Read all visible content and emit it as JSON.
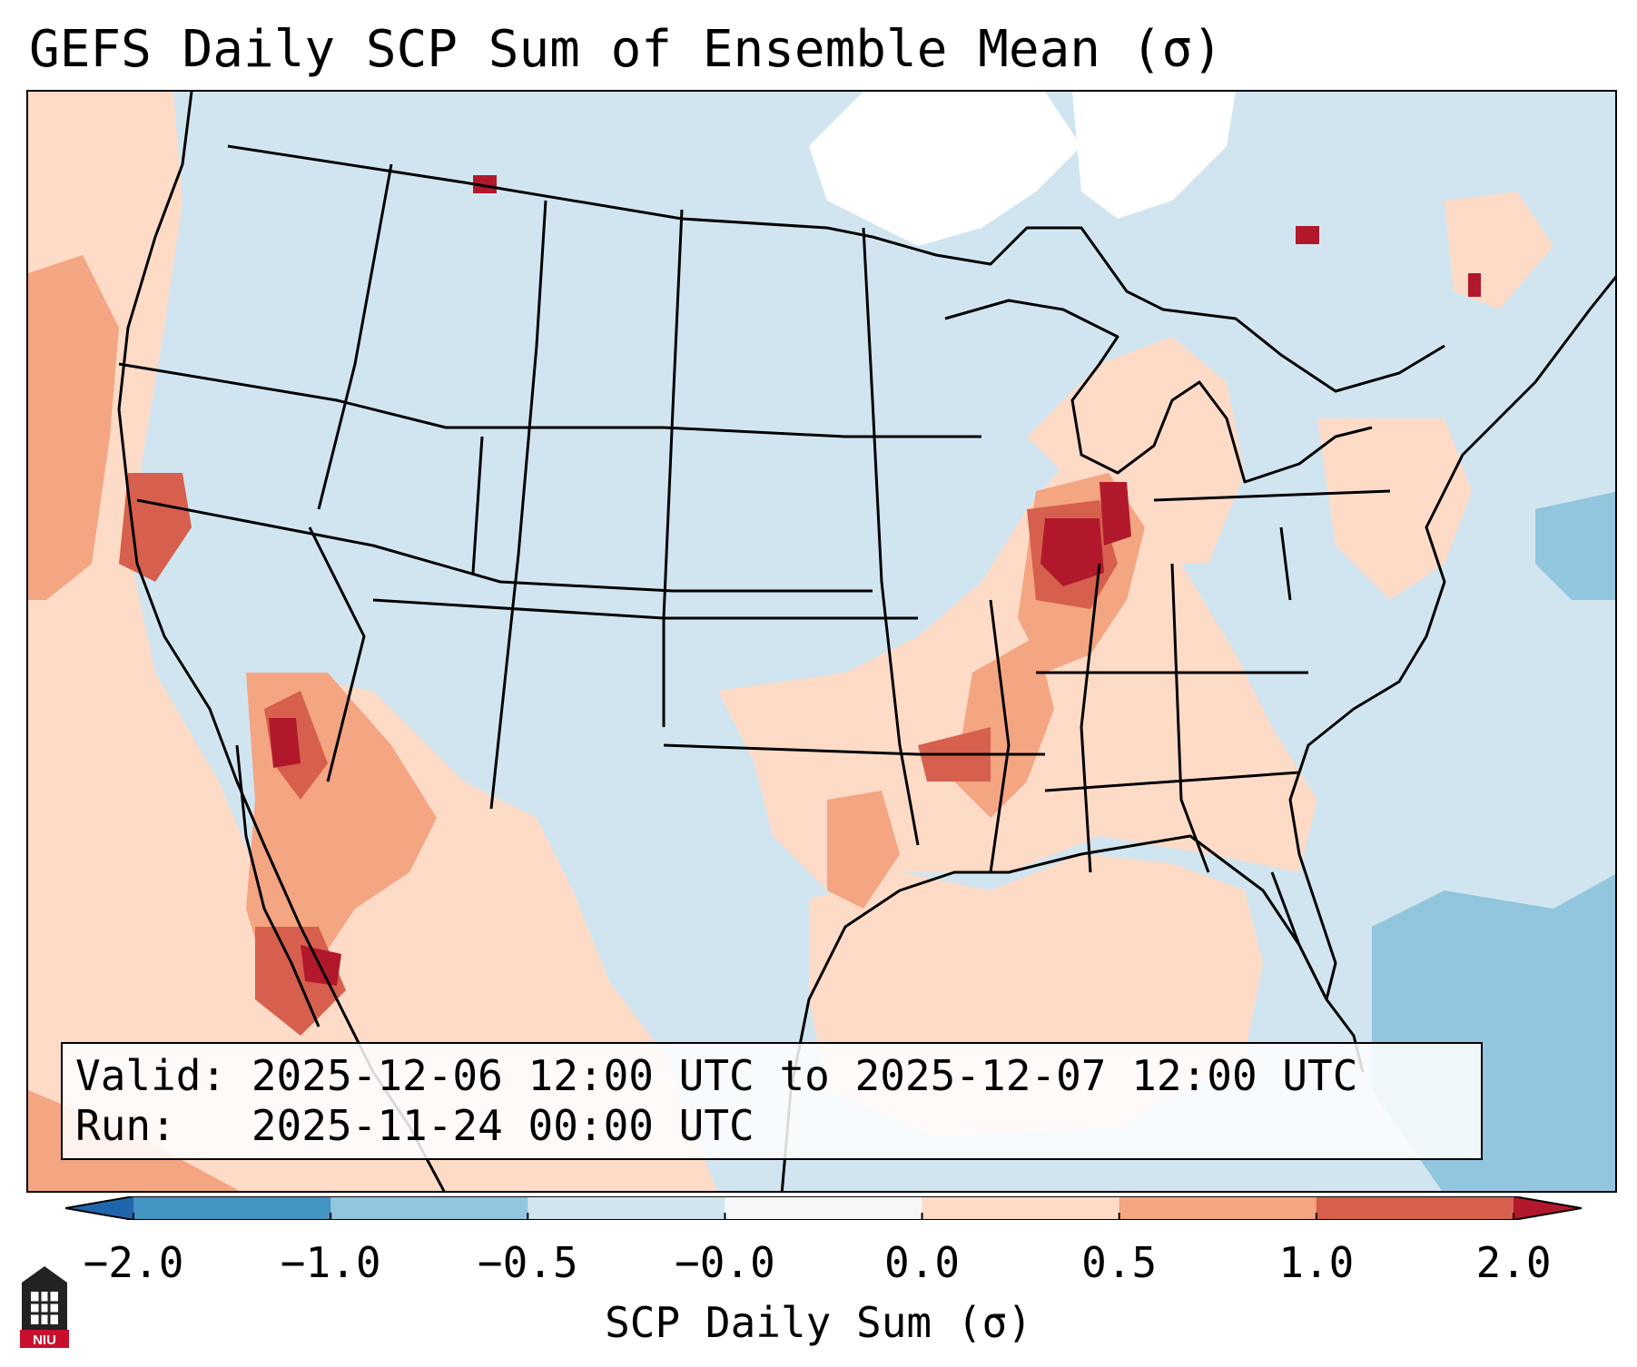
{
  "title": "GEFS Daily SCP Sum of Ensemble Mean (σ)",
  "info_box": {
    "valid_line": "Valid: 2025-12-06 12:00 UTC to 2025-12-07 12:00 UTC",
    "run_line": "Run:   2025-11-24 00:00 UTC"
  },
  "colorbar": {
    "label": "SCP Daily Sum (σ)",
    "ticks": [
      "−2.0",
      "−1.0",
      "−0.5",
      "−0.0",
      "0.0",
      "0.5",
      "1.0",
      "2.0"
    ],
    "bins": [
      {
        "from": -2.0,
        "to": -1.0,
        "color": "#4393c3"
      },
      {
        "from": -1.0,
        "to": -0.5,
        "color": "#92c5de"
      },
      {
        "from": -0.5,
        "to": -0.0,
        "color": "#d1e5f0"
      },
      {
        "from": -0.0,
        "to": 0.0,
        "color": "#f7f7f7"
      },
      {
        "from": 0.0,
        "to": 0.5,
        "color": "#fddbc7"
      },
      {
        "from": 0.5,
        "to": 1.0,
        "color": "#f4a582"
      },
      {
        "from": 1.0,
        "to": 2.0,
        "color": "#d6604d"
      }
    ],
    "under_color": "#2166ac",
    "over_color": "#b2182b"
  },
  "colors": {
    "ocean_background": "#d1e5f0",
    "neutral": "#ffffff",
    "light_positive": "#fddbc7",
    "medium_positive": "#f4a582",
    "strong_positive": "#d6604d",
    "extreme_positive": "#b2182b",
    "light_negative": "#92c5de",
    "boundary_line": "#000000"
  },
  "logo": {
    "text": "NIU"
  }
}
